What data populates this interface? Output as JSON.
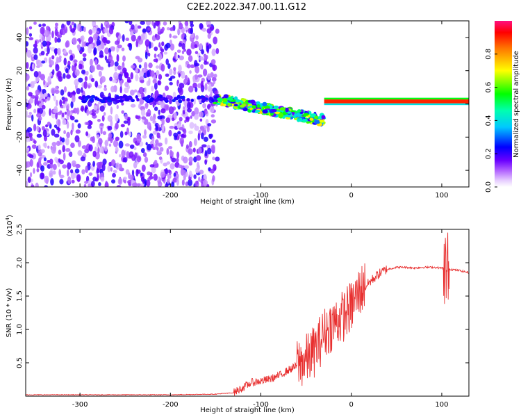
{
  "title": "C2E2.2022.347.00.11.G12",
  "chart_data": [
    {
      "type": "heatmap",
      "xlabel": "Height of straight line (km)",
      "ylabel": "Frequency (Hz)",
      "xlim": [
        -360,
        130
      ],
      "ylim": [
        -50,
        50
      ],
      "xticks": [
        -300,
        -200,
        -100,
        0,
        100
      ],
      "yticks": [
        -40,
        -20,
        0,
        20,
        40
      ],
      "colorbar": {
        "label": "Normalized spectral amplitude",
        "range": [
          0,
          1
        ],
        "ticks": [
          0.0,
          0.2,
          0.4,
          0.6,
          0.8
        ],
        "colormap": [
          "#ffffff",
          "#c080ff",
          "#6a00ff",
          "#0000ff",
          "#00ffff",
          "#00ff00",
          "#ffff00",
          "#ff8000",
          "#ff0000",
          "#ff1080"
        ]
      },
      "regions": [
        {
          "x_range": [
            -360,
            -148
          ],
          "y_range": [
            -50,
            50
          ],
          "amplitude": 0.15
        },
        {
          "x_range": [
            -150,
            -30
          ],
          "y_center_start": 3,
          "y_center_end": -10,
          "amplitude": 0.6
        },
        {
          "x_range": [
            -30,
            130
          ],
          "y_center": 1.5,
          "amplitude": 0.9
        }
      ]
    },
    {
      "type": "line",
      "xlabel": "Height of straight line (km)",
      "ylabel": "SNR (10 * v/v)",
      "scale_label": "(x10",
      "scale_exponent": "4",
      "scale_suffix": ")",
      "xlim": [
        -360,
        130
      ],
      "ylim": [
        0,
        2.5
      ],
      "xticks": [
        -300,
        -200,
        -100,
        0,
        100
      ],
      "yticks": [
        0.5,
        1.0,
        1.5,
        2.0,
        2.5
      ],
      "line_color": "#e83030",
      "series": [
        {
          "x": [
            -360,
            -300,
            -250,
            -200,
            -150,
            -130,
            -120,
            -110,
            -100,
            -90,
            -80,
            -70,
            -60,
            -50,
            -40,
            -30,
            -20,
            -10,
            0,
            10,
            20,
            30,
            40,
            50,
            60,
            70,
            80,
            90,
            100,
            110,
            120,
            130
          ],
          "values": [
            0.02,
            0.02,
            0.02,
            0.02,
            0.03,
            0.05,
            0.12,
            0.2,
            0.22,
            0.25,
            0.3,
            0.38,
            0.45,
            0.5,
            0.65,
            0.9,
            1.05,
            1.15,
            1.3,
            1.55,
            1.7,
            1.82,
            1.9,
            1.93,
            1.93,
            1.92,
            1.93,
            1.93,
            1.92,
            1.9,
            1.88,
            1.85
          ]
        }
      ]
    }
  ]
}
